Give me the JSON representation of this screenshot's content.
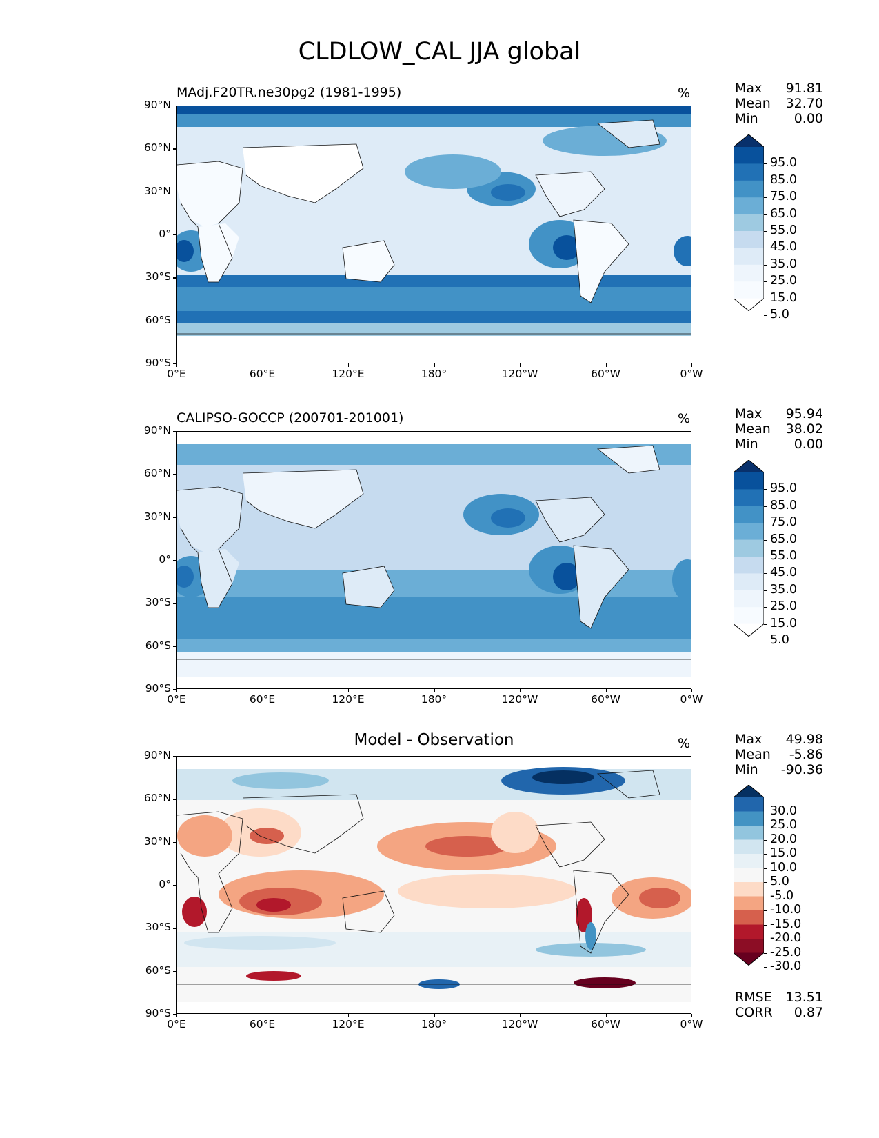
{
  "figure": {
    "title": "CLDLOW_CAL JJA global",
    "lat_ticks": [
      "90°N",
      "60°N",
      "30°N",
      "0°",
      "30°S",
      "60°S",
      "90°S"
    ],
    "lon_ticks": [
      "0°E",
      "60°E",
      "120°E",
      "180°",
      "120°W",
      "60°W",
      "0°W"
    ]
  },
  "panels": [
    {
      "title": "MAdj.F20TR.ne30pg2 (1981-1995)",
      "units": "%",
      "stats": [
        {
          "label": "Max",
          "value": "91.81"
        },
        {
          "label": "Mean",
          "value": "32.70"
        },
        {
          "label": "Min",
          "value": "0.00"
        }
      ],
      "colorbar": {
        "labels": [
          "95.0",
          "85.0",
          "75.0",
          "65.0",
          "55.0",
          "45.0",
          "35.0",
          "25.0",
          "15.0",
          "5.0"
        ],
        "colors": [
          "#08306b",
          "#08519c",
          "#2171b5",
          "#4292c6",
          "#6baed6",
          "#9ecae1",
          "#c6dbef",
          "#deebf7",
          "#eef5fc",
          "#f7fbff",
          "#ffffff"
        ]
      }
    },
    {
      "title": "CALIPSO-GOCCP (200701-201001)",
      "units": "%",
      "stats": [
        {
          "label": "Max",
          "value": "95.94"
        },
        {
          "label": "Mean",
          "value": "38.02"
        },
        {
          "label": "Min",
          "value": "0.00"
        }
      ],
      "colorbar": {
        "labels": [
          "95.0",
          "85.0",
          "75.0",
          "65.0",
          "55.0",
          "45.0",
          "35.0",
          "25.0",
          "15.0",
          "5.0"
        ],
        "colors": [
          "#08306b",
          "#08519c",
          "#2171b5",
          "#4292c6",
          "#6baed6",
          "#9ecae1",
          "#c6dbef",
          "#deebf7",
          "#eef5fc",
          "#f7fbff",
          "#ffffff"
        ]
      }
    },
    {
      "title": "Model - Observation",
      "units": "%",
      "stats": [
        {
          "label": "Max",
          "value": "49.98"
        },
        {
          "label": "Mean",
          "value": "-5.86"
        },
        {
          "label": "Min",
          "value": "-90.36"
        }
      ],
      "metrics": [
        {
          "label": "RMSE",
          "value": "13.51"
        },
        {
          "label": "CORR",
          "value": "0.87"
        }
      ],
      "colorbar": {
        "labels": [
          "30.0",
          "25.0",
          "20.0",
          "15.0",
          "10.0",
          "5.0",
          "-5.0",
          "-10.0",
          "-15.0",
          "-20.0",
          "-25.0",
          "-30.0"
        ],
        "colors": [
          "#053061",
          "#2166ac",
          "#4393c3",
          "#92c5de",
          "#d1e5f0",
          "#e8f1f6",
          "#f7f7f7",
          "#fddbc7",
          "#f4a582",
          "#d6604d",
          "#b2182b",
          "#8c0d25",
          "#67001f"
        ]
      }
    }
  ]
}
